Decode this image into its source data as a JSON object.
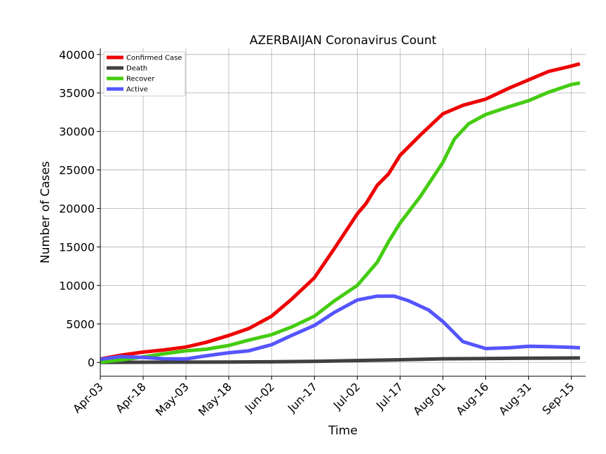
{
  "chart_data": {
    "type": "line",
    "title": "AZERBAIJAN Coronavirus Count",
    "xlabel": "Time",
    "ylabel": "Number of Cases",
    "x_start": "2020-04-03",
    "x_end": "2020-09-20",
    "ylim": [
      -1800,
      40800
    ],
    "xticks": [
      {
        "label": "Apr-03",
        "date": "2020-04-03"
      },
      {
        "label": "Apr-18",
        "date": "2020-04-18"
      },
      {
        "label": "May-03",
        "date": "2020-05-03"
      },
      {
        "label": "May-18",
        "date": "2020-05-18"
      },
      {
        "label": "Jun-02",
        "date": "2020-06-02"
      },
      {
        "label": "Jun-17",
        "date": "2020-06-17"
      },
      {
        "label": "Jul-02",
        "date": "2020-07-02"
      },
      {
        "label": "Jul-17",
        "date": "2020-07-17"
      },
      {
        "label": "Aug-01",
        "date": "2020-08-01"
      },
      {
        "label": "Aug-16",
        "date": "2020-08-16"
      },
      {
        "label": "Aug-31",
        "date": "2020-08-31"
      },
      {
        "label": "Sep-15",
        "date": "2020-09-15"
      }
    ],
    "yticks": [
      0,
      5000,
      10000,
      15000,
      20000,
      25000,
      30000,
      35000,
      40000
    ],
    "grid": true,
    "legend_position": "top-left",
    "series": [
      {
        "name": "Confirmed Case",
        "color": "#ee0000",
        "points": [
          [
            "2020-04-03",
            443
          ],
          [
            "2020-04-10",
            926
          ],
          [
            "2020-04-18",
            1340
          ],
          [
            "2020-04-25",
            1600
          ],
          [
            "2020-05-03",
            2000
          ],
          [
            "2020-05-10",
            2600
          ],
          [
            "2020-05-18",
            3500
          ],
          [
            "2020-05-25",
            4400
          ],
          [
            "2020-06-02",
            6000
          ],
          [
            "2020-06-09",
            8200
          ],
          [
            "2020-06-17",
            11000
          ],
          [
            "2020-06-24",
            14800
          ],
          [
            "2020-07-02",
            19300
          ],
          [
            "2020-07-05",
            20600
          ],
          [
            "2020-07-09",
            23000
          ],
          [
            "2020-07-13",
            24500
          ],
          [
            "2020-07-17",
            26900
          ],
          [
            "2020-07-24",
            29500
          ],
          [
            "2020-08-01",
            32300
          ],
          [
            "2020-08-08",
            33400
          ],
          [
            "2020-08-16",
            34200
          ],
          [
            "2020-08-24",
            35600
          ],
          [
            "2020-08-31",
            36700
          ],
          [
            "2020-09-07",
            37800
          ],
          [
            "2020-09-15",
            38500
          ],
          [
            "2020-09-18",
            38800
          ]
        ]
      },
      {
        "name": "Death",
        "color": "#404040",
        "points": [
          [
            "2020-04-03",
            5
          ],
          [
            "2020-04-18",
            18
          ],
          [
            "2020-05-03",
            26
          ],
          [
            "2020-05-18",
            39
          ],
          [
            "2020-06-02",
            73
          ],
          [
            "2020-06-17",
            138
          ],
          [
            "2020-07-02",
            240
          ],
          [
            "2020-07-17",
            340
          ],
          [
            "2020-08-01",
            470
          ],
          [
            "2020-08-16",
            500
          ],
          [
            "2020-08-31",
            540
          ],
          [
            "2020-09-15",
            570
          ],
          [
            "2020-09-18",
            575
          ]
        ]
      },
      {
        "name": "Recover",
        "color": "#44cc11",
        "points": [
          [
            "2020-04-03",
            30
          ],
          [
            "2020-04-10",
            300
          ],
          [
            "2020-04-18",
            700
          ],
          [
            "2020-04-25",
            1100
          ],
          [
            "2020-05-03",
            1500
          ],
          [
            "2020-05-10",
            1700
          ],
          [
            "2020-05-18",
            2200
          ],
          [
            "2020-05-25",
            2900
          ],
          [
            "2020-06-02",
            3600
          ],
          [
            "2020-06-09",
            4600
          ],
          [
            "2020-06-17",
            6000
          ],
          [
            "2020-06-24",
            8000
          ],
          [
            "2020-07-02",
            10000
          ],
          [
            "2020-07-09",
            13000
          ],
          [
            "2020-07-13",
            15700
          ],
          [
            "2020-07-17",
            18100
          ],
          [
            "2020-07-24",
            21500
          ],
          [
            "2020-08-01",
            26000
          ],
          [
            "2020-08-05",
            29000
          ],
          [
            "2020-08-10",
            31000
          ],
          [
            "2020-08-16",
            32200
          ],
          [
            "2020-08-24",
            33200
          ],
          [
            "2020-08-31",
            34000
          ],
          [
            "2020-09-07",
            35100
          ],
          [
            "2020-09-15",
            36100
          ],
          [
            "2020-09-18",
            36300
          ]
        ]
      },
      {
        "name": "Active",
        "color": "#5555ff",
        "points": [
          [
            "2020-04-03",
            400
          ],
          [
            "2020-04-10",
            750
          ],
          [
            "2020-04-18",
            650
          ],
          [
            "2020-04-25",
            480
          ],
          [
            "2020-05-03",
            450
          ],
          [
            "2020-05-10",
            850
          ],
          [
            "2020-05-18",
            1250
          ],
          [
            "2020-05-25",
            1500
          ],
          [
            "2020-06-02",
            2300
          ],
          [
            "2020-06-09",
            3500
          ],
          [
            "2020-06-17",
            4800
          ],
          [
            "2020-06-24",
            6500
          ],
          [
            "2020-07-02",
            8100
          ],
          [
            "2020-07-09",
            8600
          ],
          [
            "2020-07-15",
            8600
          ],
          [
            "2020-07-20",
            8000
          ],
          [
            "2020-07-27",
            6800
          ],
          [
            "2020-08-01",
            5300
          ],
          [
            "2020-08-08",
            2700
          ],
          [
            "2020-08-16",
            1800
          ],
          [
            "2020-08-24",
            1900
          ],
          [
            "2020-08-31",
            2100
          ],
          [
            "2020-09-07",
            2050
          ],
          [
            "2020-09-15",
            1950
          ],
          [
            "2020-09-18",
            1900
          ]
        ]
      }
    ]
  }
}
